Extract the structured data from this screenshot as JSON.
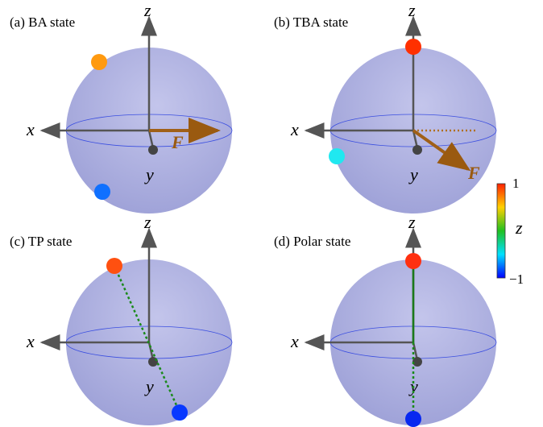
{
  "panels": [
    {
      "label": "(a) BA state",
      "axes": {
        "x": "x",
        "y": "y",
        "z": "z"
      },
      "force": "F"
    },
    {
      "label": "(b) TBA state",
      "axes": {
        "x": "x",
        "y": "y",
        "z": "z"
      },
      "force": "F"
    },
    {
      "label": "(c) TP state",
      "axes": {
        "x": "x",
        "y": "y",
        "z": "z"
      }
    },
    {
      "label": "(d) Polar state",
      "axes": {
        "x": "x",
        "y": "y",
        "z": "z"
      }
    }
  ],
  "colorbar": {
    "top": "1",
    "label": "z",
    "bottom": "−1"
  }
}
